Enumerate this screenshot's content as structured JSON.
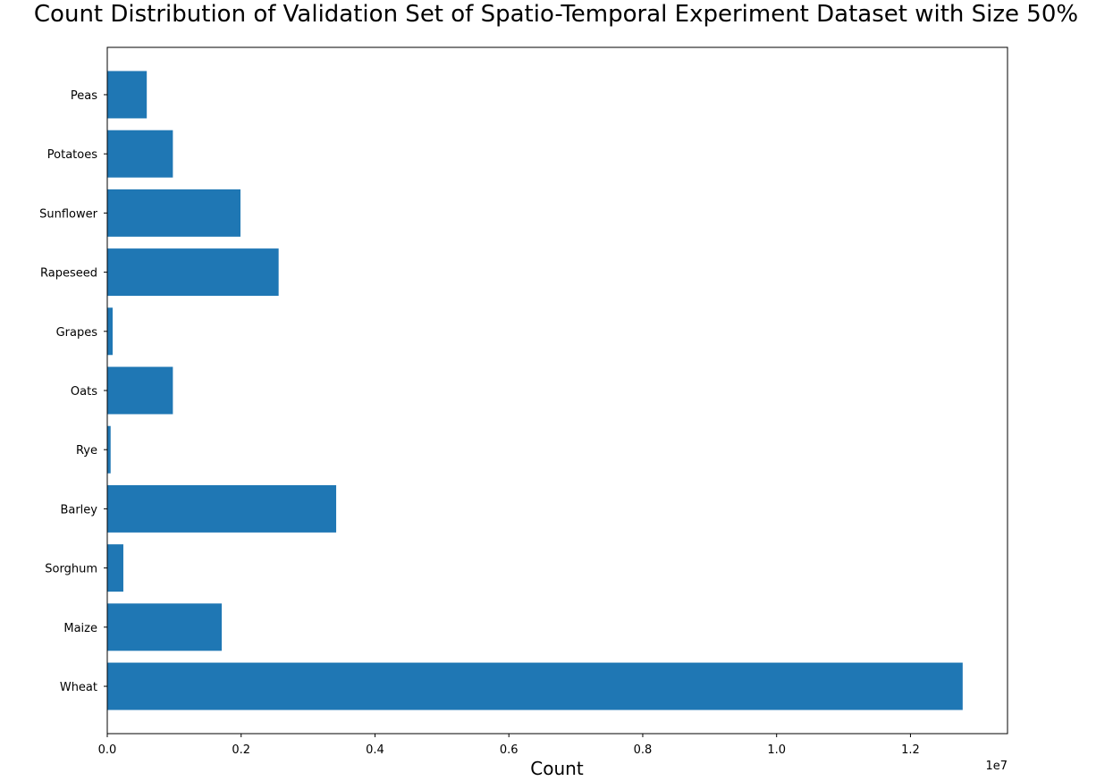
{
  "chart_data": {
    "type": "bar",
    "orientation": "horizontal",
    "title": "Count Distribution of Validation Set of Spatio-Temporal Experiment Dataset with Size 50%",
    "xlabel": "Count",
    "ylabel": "",
    "x_offset_label": "1e7",
    "x_scale": 10000000,
    "xlim": [
      0,
      13450000
    ],
    "x_ticks": [
      0,
      2000000,
      4000000,
      6000000,
      8000000,
      10000000,
      12000000
    ],
    "x_tick_labels": [
      "0.0",
      "0.2",
      "0.4",
      "0.6",
      "0.8",
      "1.0",
      "1.2"
    ],
    "categories": [
      "Wheat",
      "Maize",
      "Sorghum",
      "Barley",
      "Rye",
      "Oats",
      "Grapes",
      "Rapeseed",
      "Sunflower",
      "Potatoes",
      "Peas"
    ],
    "values": [
      12780000,
      1710000,
      240000,
      3420000,
      50000,
      980000,
      80000,
      2560000,
      1990000,
      980000,
      590000
    ],
    "bar_color": "#1f77b4",
    "grid": false,
    "legend": "none"
  }
}
